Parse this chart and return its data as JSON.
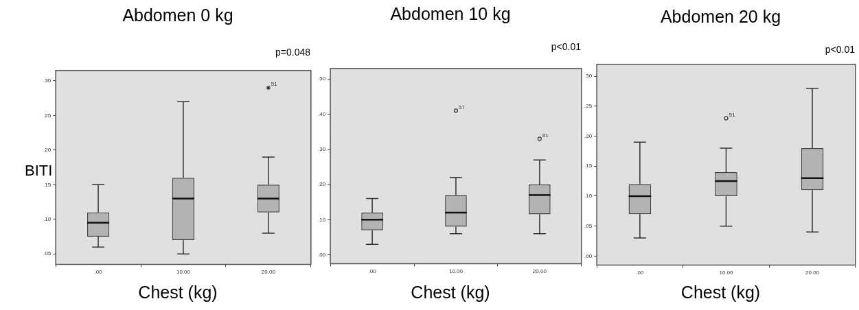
{
  "chart_data": [
    {
      "type": "box",
      "title": "Abdomen 0 kg",
      "xlabel": "Chest (kg)",
      "ylabel": "BITI",
      "categories": [
        ".00",
        "10.00",
        "20.00"
      ],
      "boxes": [
        {
          "low": 0.06,
          "q1": 0.075,
          "median": 0.095,
          "q3": 0.11,
          "high": 0.15
        },
        {
          "low": 0.05,
          "q1": 0.07,
          "median": 0.13,
          "q3": 0.16,
          "high": 0.27
        },
        {
          "low": 0.08,
          "q1": 0.11,
          "median": 0.13,
          "q3": 0.15,
          "high": 0.19,
          "outliers": [
            0.29
          ]
        }
      ],
      "ylim": [
        0.035,
        0.315
      ],
      "yticks": [
        {
          "value": 0.05,
          "label": ".05"
        },
        {
          "value": 0.1,
          "label": ".10"
        },
        {
          "value": 0.15,
          "label": ".15"
        },
        {
          "value": 0.2,
          "label": ".20"
        },
        {
          "value": 0.25,
          "label": ".25"
        },
        {
          "value": 0.3,
          "label": ".30"
        }
      ],
      "marker": "star",
      "annotations": [
        "p=0.048",
        "51"
      ]
    },
    {
      "type": "box",
      "title": "Abdomen 10 kg",
      "xlabel": "Chest (kg)",
      "categories": [
        ".00",
        "10.00",
        "20.00"
      ],
      "boxes": [
        {
          "low": 0.03,
          "q1": 0.07,
          "median": 0.1,
          "q3": 0.12,
          "high": 0.16
        },
        {
          "low": 0.06,
          "q1": 0.08,
          "median": 0.12,
          "q3": 0.17,
          "high": 0.22,
          "outliers": [
            0.41
          ]
        },
        {
          "low": 0.06,
          "q1": 0.115,
          "median": 0.17,
          "q3": 0.2,
          "high": 0.27,
          "outliers": [
            0.33
          ]
        }
      ],
      "ylim": [
        -0.025,
        0.53
      ],
      "yticks": [
        {
          "value": 0,
          "label": ".00"
        },
        {
          "value": 0.1,
          "label": ".10"
        },
        {
          "value": 0.2,
          "label": ".20"
        },
        {
          "value": 0.3,
          "label": ".30"
        },
        {
          "value": 0.4,
          "label": ".40"
        },
        {
          "value": 0.5,
          "label": ".50"
        }
      ],
      "marker": "circle",
      "annotations": [
        "p<0.01",
        "57",
        "81"
      ]
    },
    {
      "type": "box",
      "title": "Abdomen 20 kg",
      "xlabel": "Chest (kg)",
      "categories": [
        ".00",
        "10.00",
        "20.00"
      ],
      "boxes": [
        {
          "low": 0.03,
          "q1": 0.07,
          "median": 0.1,
          "q3": 0.12,
          "high": 0.19
        },
        {
          "low": 0.05,
          "q1": 0.1,
          "median": 0.125,
          "q3": 0.14,
          "high": 0.18,
          "outliers": [
            0.23
          ]
        },
        {
          "low": 0.04,
          "q1": 0.11,
          "median": 0.13,
          "q3": 0.18,
          "high": 0.28
        }
      ],
      "ylim": [
        -0.015,
        0.32
      ],
      "yticks": [
        {
          "value": 0,
          "label": ".00"
        },
        {
          "value": 0.05,
          "label": ".05"
        },
        {
          "value": 0.1,
          "label": ".10"
        },
        {
          "value": 0.15,
          "label": ".15"
        },
        {
          "value": 0.2,
          "label": ".20"
        },
        {
          "value": 0.25,
          "label": ".25"
        },
        {
          "value": 0.3,
          "label": ".30"
        }
      ],
      "marker": "circle",
      "annotations": [
        "p<0.01",
        "51"
      ]
    }
  ]
}
